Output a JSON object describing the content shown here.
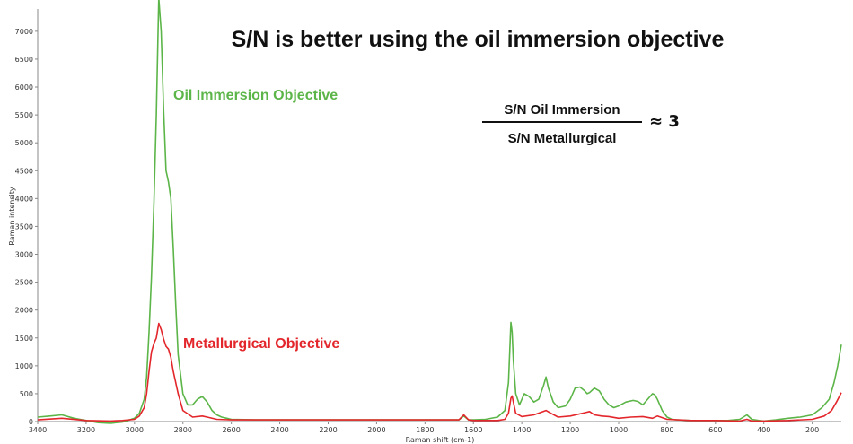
{
  "chart_data": {
    "type": "line",
    "title": "S/N is better using the oil immersion objective",
    "xlabel": "Raman shift (cm-1)",
    "ylabel": "Raman intensity",
    "xlim": [
      3400,
      80
    ],
    "ylim": [
      0,
      7400
    ],
    "x_reversed": true,
    "grid": false,
    "x_ticks": [
      3400,
      3200,
      3000,
      2800,
      2600,
      2400,
      2200,
      2000,
      1800,
      1600,
      1400,
      1200,
      1000,
      800,
      600,
      400,
      200
    ],
    "y_ticks": [
      0,
      500,
      1000,
      1500,
      2000,
      2500,
      3000,
      3500,
      4000,
      4500,
      5000,
      5500,
      6000,
      6500,
      7000
    ],
    "series": [
      {
        "name": "Oil Immersion Objective",
        "color": "#5cb548",
        "x": [
          3400,
          3350,
          3300,
          3250,
          3200,
          3150,
          3100,
          3050,
          3000,
          2980,
          2960,
          2950,
          2940,
          2930,
          2920,
          2910,
          2900,
          2890,
          2880,
          2870,
          2860,
          2850,
          2840,
          2830,
          2820,
          2800,
          2780,
          2760,
          2740,
          2720,
          2700,
          2680,
          2660,
          2640,
          2600,
          2500,
          2400,
          2300,
          2200,
          2100,
          2000,
          1900,
          1800,
          1700,
          1660,
          1640,
          1620,
          1600,
          1550,
          1500,
          1470,
          1455,
          1445,
          1440,
          1435,
          1425,
          1410,
          1390,
          1370,
          1350,
          1330,
          1310,
          1300,
          1290,
          1270,
          1250,
          1220,
          1200,
          1180,
          1160,
          1140,
          1130,
          1120,
          1100,
          1080,
          1070,
          1060,
          1040,
          1020,
          1000,
          970,
          940,
          920,
          900,
          880,
          860,
          850,
          840,
          820,
          800,
          780,
          760,
          700,
          650,
          600,
          550,
          500,
          470,
          450,
          420,
          400,
          350,
          300,
          250,
          200,
          160,
          130,
          110,
          95,
          80
        ],
        "y": [
          80,
          100,
          120,
          60,
          20,
          -20,
          -30,
          -10,
          60,
          150,
          400,
          800,
          1600,
          2600,
          3900,
          5500,
          7600,
          7000,
          5600,
          4500,
          4300,
          4000,
          3100,
          2100,
          1200,
          500,
          300,
          300,
          400,
          450,
          350,
          200,
          120,
          80,
          40,
          30,
          30,
          30,
          30,
          30,
          30,
          30,
          30,
          30,
          30,
          100,
          30,
          30,
          40,
          80,
          200,
          700,
          1780,
          1600,
          1100,
          500,
          300,
          500,
          450,
          350,
          400,
          650,
          800,
          600,
          350,
          250,
          280,
          400,
          600,
          620,
          550,
          500,
          520,
          600,
          550,
          480,
          400,
          300,
          250,
          280,
          350,
          380,
          360,
          300,
          400,
          500,
          480,
          400,
          200,
          80,
          40,
          30,
          20,
          20,
          20,
          20,
          40,
          120,
          40,
          20,
          10,
          30,
          60,
          80,
          120,
          250,
          400,
          700,
          1000,
          1380
        ]
      },
      {
        "name": "Metallurgical Objective",
        "color": "#e3262b",
        "x": [
          3400,
          3300,
          3200,
          3100,
          3050,
          3000,
          2980,
          2960,
          2950,
          2940,
          2930,
          2920,
          2910,
          2900,
          2890,
          2880,
          2870,
          2860,
          2850,
          2840,
          2820,
          2800,
          2760,
          2720,
          2700,
          2660,
          2600,
          2400,
          2200,
          2000,
          1800,
          1700,
          1660,
          1640,
          1620,
          1600,
          1500,
          1470,
          1455,
          1445,
          1440,
          1435,
          1425,
          1400,
          1350,
          1300,
          1280,
          1250,
          1200,
          1140,
          1120,
          1100,
          1070,
          1040,
          1000,
          950,
          900,
          860,
          840,
          820,
          800,
          700,
          600,
          500,
          470,
          450,
          400,
          300,
          200,
          150,
          120,
          100,
          80
        ],
        "y": [
          30,
          60,
          20,
          10,
          20,
          40,
          100,
          250,
          500,
          900,
          1250,
          1400,
          1500,
          1760,
          1650,
          1480,
          1350,
          1300,
          1150,
          900,
          500,
          200,
          80,
          100,
          80,
          40,
          30,
          30,
          30,
          30,
          30,
          30,
          30,
          120,
          30,
          20,
          20,
          40,
          150,
          420,
          460,
          350,
          150,
          90,
          120,
          200,
          150,
          80,
          100,
          160,
          180,
          120,
          100,
          90,
          60,
          80,
          90,
          60,
          100,
          70,
          40,
          20,
          20,
          10,
          40,
          10,
          10,
          20,
          40,
          100,
          200,
          350,
          520
        ]
      }
    ],
    "annotations": {
      "ratio_numerator": "S/N Oil Immersion",
      "ratio_denominator": "S/N Metallurgical",
      "ratio_value": "≈ 3"
    }
  }
}
